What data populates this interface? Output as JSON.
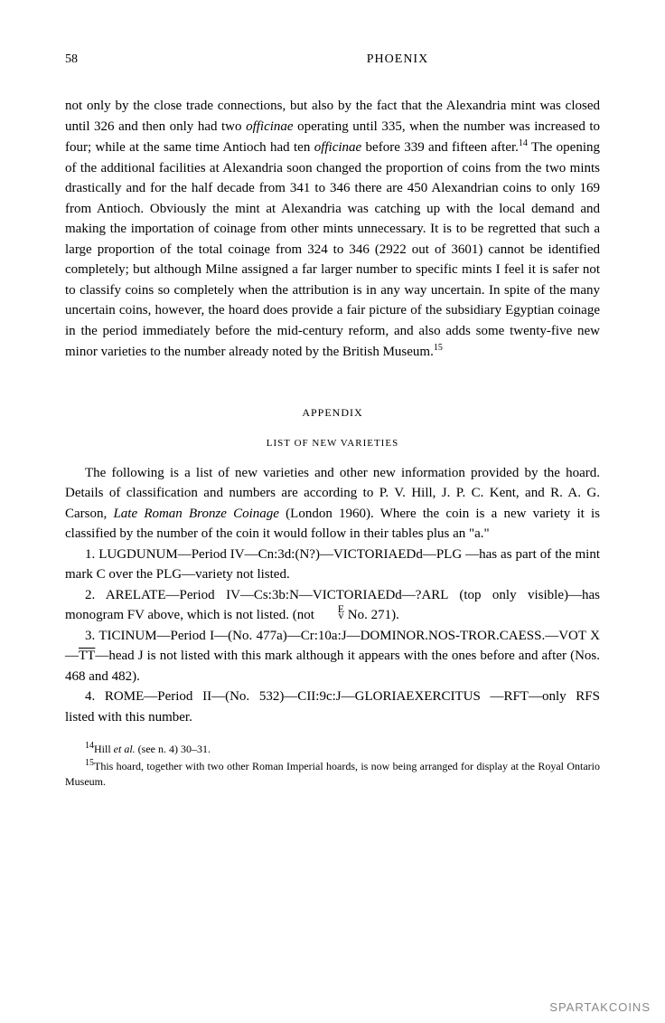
{
  "header": {
    "page_number": "58",
    "running_head": "PHOENIX"
  },
  "body": {
    "paragraph": "not only by the close trade connections, but also by the fact that the Alexandria mint was closed until 326 and then only had two",
    "officinae1": "officinae",
    "paragraph2": "operating until 335, when the number was increased to four; while at the same time Antioch had ten",
    "officinae2": "officinae",
    "paragraph3": "before 339 and fifteen after.",
    "fn14": "14",
    "paragraph4": "The opening of the additional facilities at Alexandria soon changed the proportion of coins from the two mints drastically and for the half decade from 341 to 346 there are 450 Alexandrian coins to only 169 from Antioch. Obviously the mint at Alexandria was catching up with the local demand and making the importation of coinage from other mints unnecessary. It is to be regretted that such a large proportion of the total coinage from 324 to 346 (2922 out of 3601) cannot be identified completely; but although Milne assigned a far larger number to specific mints I feel it is safer not to classify coins so completely when the attribution is in any way uncertain. In spite of the many uncertain coins, however, the hoard does provide a fair picture of the subsidiary Egyptian coinage in the period immediately before the mid-century reform, and also adds some twenty-five new minor varieties to the number already noted by the British Museum.",
    "fn15": "15"
  },
  "appendix": {
    "heading": "APPENDIX",
    "subheading": "LIST OF NEW VARIETIES",
    "intro1": "The following is a list of new varieties and other new information provided by the hoard. Details of classification and numbers are according to P. V. Hill, J. P. C. Kent, and R. A. G. Carson,",
    "book_title": "Late Roman Bronze Coinage",
    "intro2": "(London 1960). Where the coin is a new variety it is classified by the number of the coin it would follow in their tables plus an \"a.\"",
    "item1": "1. LUGDUNUM—Period IV—Cn:3d:(N?)—VICTORIAEDd—PLG —has as part of the mint mark C over the PLG—variety not listed.",
    "item2a": "2. ARELATE—Period IV—Cs:3b:N—VICTORIAEDd—?ARL (top only visible)—has monogram FV above, which is not listed. (not",
    "item2b": "No. 271).",
    "item3a": "3. TICINUM—Period I—(No. 477a)—Cr:10a:J—DOMINOR.NOS-TROR.CAESS.—VOT X—",
    "item3tt": "TT",
    "item3b": "—head J is not listed with this mark although it appears with the ones before and after (Nos. 468 and 482).",
    "item4": "4. ROME—Period II—(No. 532)—CII:9c:J—GLORIAEXERCITUS —RFT—only RFS listed with this number."
  },
  "footnotes": {
    "fn14_marker": "14",
    "fn14_text": "Hill",
    "fn14_etal": "et al.",
    "fn14_rest": "(see n. 4) 30–31.",
    "fn15_marker": "15",
    "fn15_text": "This hoard, together with two other Roman Imperial hoards, is now being arranged for display at the Royal Ontario Museum."
  },
  "watermark": "SPARTAKCOINS",
  "colors": {
    "background": "#ffffff",
    "text": "#000000",
    "watermark": "#888888"
  },
  "typography": {
    "body_fontsize": 15,
    "heading_fontsize": 12,
    "footnote_fontsize": 12,
    "font_family": "Georgia, Times New Roman, serif"
  }
}
